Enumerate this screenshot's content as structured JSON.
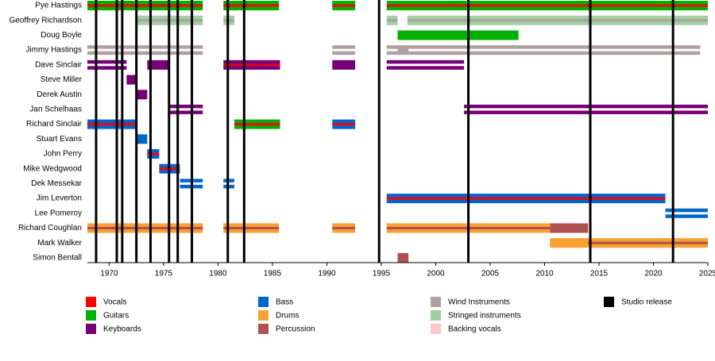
{
  "chart_data": {
    "type": "timeline",
    "xlim": [
      1968,
      2025
    ],
    "xticks": [
      1970,
      1975,
      1980,
      1985,
      1990,
      1995,
      2000,
      2005,
      2010,
      2015,
      2020,
      2025
    ],
    "releases_color": "#000000",
    "releases": [
      1968.8,
      1970.7,
      1971.2,
      1972.5,
      1973.8,
      1975.5,
      1976.3,
      1977.6,
      1980.9,
      1982.4,
      1994.8,
      2003.0,
      2014.2,
      2021.8
    ],
    "members": [
      {
        "name": "Pye Hastings",
        "segments": [
          {
            "start": 1968,
            "end": 1978.6,
            "color": "#00b000",
            "stripe": "#ff0000"
          },
          {
            "start": 1980.5,
            "end": 1985.6,
            "color": "#00b000",
            "stripe": "#ff0000"
          },
          {
            "start": 1990.5,
            "end": 1992.6,
            "color": "#00b000",
            "stripe": "#ff0000"
          },
          {
            "start": 1995.5,
            "end": 2025,
            "color": "#00b000",
            "stripe": "#ff0000"
          }
        ]
      },
      {
        "name": "Geoffrey Richardson",
        "segments": [
          {
            "start": 1972.5,
            "end": 1978.6,
            "color": "#a0d0a0",
            "stripe": "#b0a0a0"
          },
          {
            "start": 1980.5,
            "end": 1981.5,
            "color": "#a0d0a0",
            "stripe": "#b0a0a0"
          },
          {
            "start": 1995.5,
            "end": 1996.5,
            "color": "#a0d0a0",
            "stripe": "#b0a0a0"
          },
          {
            "start": 1997.4,
            "end": 2025,
            "color": "#a0d0a0",
            "stripe": "#b0a0a0"
          }
        ]
      },
      {
        "name": "Doug Boyle",
        "segments": [
          {
            "start": 1996.5,
            "end": 2007.6,
            "color": "#00b000"
          }
        ]
      },
      {
        "name": "Jimmy Hastings",
        "segments": [
          {
            "start": 1968,
            "end": 1978.6,
            "color": "#b0a0a0",
            "stripe": "#ffffff"
          },
          {
            "start": 1990.5,
            "end": 1992.6,
            "color": "#b0a0a0",
            "stripe": "#ffffff"
          },
          {
            "start": 1995.5,
            "end": 2024.3,
            "color": "#b0a0a0",
            "stripe": "#ffffff"
          },
          {
            "start": 1996.5,
            "end": 1997.5,
            "color": "#b0a0a0"
          }
        ]
      },
      {
        "name": "Dave Sinclair",
        "segments": [
          {
            "start": 1968,
            "end": 1971.6,
            "color": "#780078",
            "stripe": "#ffffff"
          },
          {
            "start": 1973.5,
            "end": 1975.5,
            "color": "#780078"
          },
          {
            "start": 1980.5,
            "end": 1985.7,
            "color": "#780078",
            "stripe": "#e00020"
          },
          {
            "start": 1990.5,
            "end": 1992.6,
            "color": "#780078"
          },
          {
            "start": 1995.5,
            "end": 2002.6,
            "color": "#780078",
            "stripe": "#ffffff"
          }
        ]
      },
      {
        "name": "Steve Miller",
        "segments": [
          {
            "start": 1971.6,
            "end": 1972.5,
            "color": "#780078"
          }
        ]
      },
      {
        "name": "Derek Austin",
        "segments": [
          {
            "start": 1972.5,
            "end": 1973.5,
            "color": "#780078"
          }
        ]
      },
      {
        "name": "Jan Schelhaas",
        "segments": [
          {
            "start": 1975.5,
            "end": 1978.6,
            "color": "#780078",
            "stripe": "#ffffff"
          },
          {
            "start": 2002.6,
            "end": 2025,
            "color": "#780078",
            "stripe": "#ffffff"
          }
        ]
      },
      {
        "name": "Richard Sinclair",
        "segments": [
          {
            "start": 1968,
            "end": 1972.5,
            "color": "#0066cc",
            "stripe": "#ff0000"
          },
          {
            "start": 1981.5,
            "end": 1985.7,
            "color": "#00b000",
            "stripe": "#ff0000"
          },
          {
            "start": 1990.5,
            "end": 1992.6,
            "color": "#0066cc",
            "stripe": "#ff0000"
          }
        ]
      },
      {
        "name": "Stuart Evans",
        "segments": [
          {
            "start": 1972.5,
            "end": 1973.5,
            "color": "#0066cc"
          }
        ]
      },
      {
        "name": "John Perry",
        "segments": [
          {
            "start": 1973.5,
            "end": 1974.6,
            "color": "#0066cc",
            "stripe": "#ff0000"
          }
        ]
      },
      {
        "name": "Mike Wedgwood",
        "segments": [
          {
            "start": 1974.6,
            "end": 1976.5,
            "color": "#0066cc",
            "stripe": "#ff0000"
          }
        ]
      },
      {
        "name": "Dek Messekar",
        "segments": [
          {
            "start": 1976.5,
            "end": 1978.6,
            "color": "#0066cc",
            "stripe": "#ffffff"
          },
          {
            "start": 1980.5,
            "end": 1981.5,
            "color": "#0066cc",
            "stripe": "#ffffff"
          }
        ]
      },
      {
        "name": "Jim Leverton",
        "segments": [
          {
            "start": 1995.5,
            "end": 2021.1,
            "color": "#0066cc",
            "stripe": "#ff0000"
          }
        ]
      },
      {
        "name": "Lee Pomeroy",
        "segments": [
          {
            "start": 2021.1,
            "end": 2025,
            "color": "#0066cc",
            "stripe": "#ffffff"
          }
        ]
      },
      {
        "name": "Richard Coughlan",
        "segments": [
          {
            "start": 1968,
            "end": 1978.6,
            "color": "#f8a030",
            "stripe": "#b05050"
          },
          {
            "start": 1980.5,
            "end": 1985.6,
            "color": "#f8a030",
            "stripe": "#b05050"
          },
          {
            "start": 1990.5,
            "end": 1992.6,
            "color": "#f8a030",
            "stripe": "#b05050"
          },
          {
            "start": 1995.5,
            "end": 2010.5,
            "color": "#f8a030",
            "stripe": "#b05050"
          },
          {
            "start": 2010.5,
            "end": 2014,
            "color": "#b05050"
          }
        ]
      },
      {
        "name": "Mark Walker",
        "segments": [
          {
            "start": 2010.5,
            "end": 2014,
            "color": "#f8a030"
          },
          {
            "start": 2014,
            "end": 2025,
            "color": "#f8a030",
            "stripe": "#b05050"
          }
        ]
      },
      {
        "name": "Simon Bentall",
        "segments": [
          {
            "start": 1996.5,
            "end": 1997.5,
            "color": "#b05050"
          }
        ]
      }
    ],
    "legend": [
      {
        "name": "Vocals",
        "color": "#ff0000"
      },
      {
        "name": "Guitars",
        "color": "#00b000"
      },
      {
        "name": "Keyboards",
        "color": "#780078"
      },
      {
        "name": "Bass",
        "color": "#0066cc"
      },
      {
        "name": "Drums",
        "color": "#f8a030"
      },
      {
        "name": "Percussion",
        "color": "#b05050"
      },
      {
        "name": "Wind Instruments",
        "color": "#b0a0a0"
      },
      {
        "name": "Stringed instruments",
        "color": "#a0d0a0"
      },
      {
        "name": "Backing vocals",
        "color": "#ffc8c8"
      },
      {
        "name": "Studio release",
        "color": "#000000"
      }
    ]
  }
}
